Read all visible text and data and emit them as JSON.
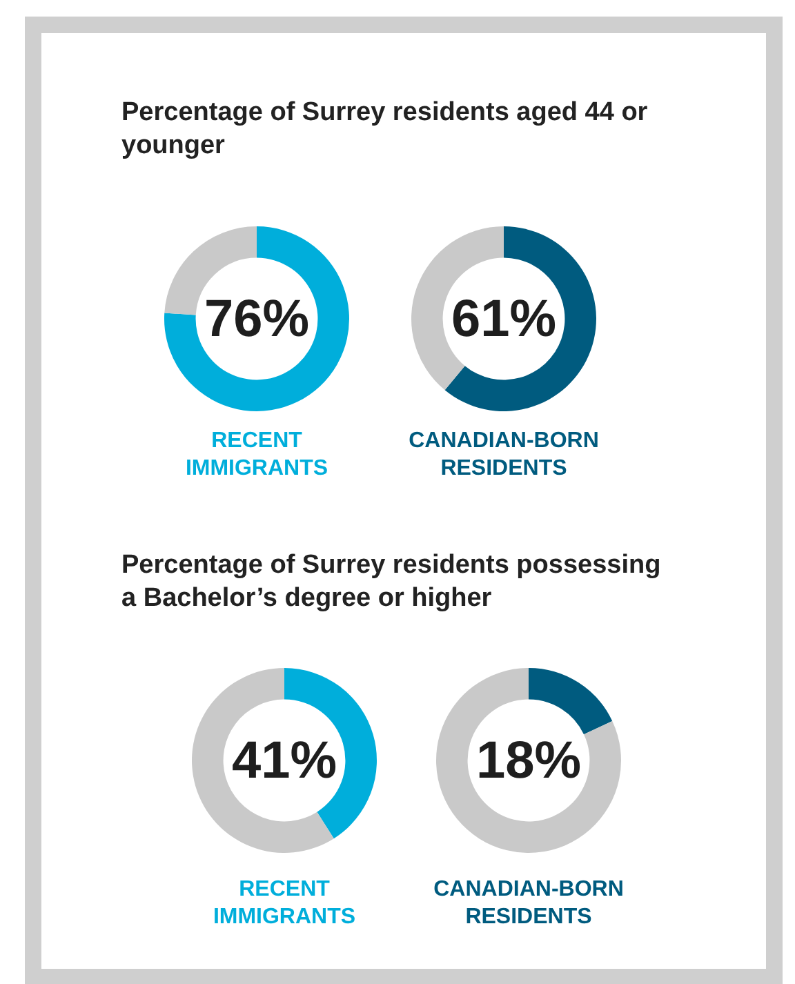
{
  "chart_data": [
    {
      "type": "donut",
      "title": "Percentage of Surrey residents aged 44 or younger",
      "xlabel": "RECENT IMMIGRANTS",
      "categories": [
        null,
        null
      ],
      "values": [
        76,
        24
      ],
      "colors": [
        "#00aedb",
        "#c9c9c9"
      ],
      "annotations": [
        "76%"
      ],
      "legend": false
    },
    {
      "type": "donut",
      "xlabel": "CANADIAN-BORN RESIDENTS",
      "categories": [
        null,
        null
      ],
      "values": [
        61,
        39
      ],
      "colors": [
        "#005b7f",
        "#c9c9c9"
      ],
      "annotations": [
        "61%"
      ],
      "legend": false
    },
    {
      "type": "donut",
      "title": "Percentage of Surrey residents possessing a Bachelor’s degree or higher",
      "xlabel": "RECENT IMMIGRANTS",
      "categories": [
        null,
        null
      ],
      "values": [
        41,
        59
      ],
      "colors": [
        "#00aedb",
        "#c9c9c9"
      ],
      "annotations": [
        "41%"
      ],
      "legend": false
    },
    {
      "type": "donut",
      "xlabel": "CANADIAN-BORN RESIDENTS",
      "categories": [
        null,
        null
      ],
      "values": [
        18,
        82
      ],
      "colors": [
        "#005b7f",
        "#c9c9c9"
      ],
      "annotations": [
        "18%"
      ],
      "legend": false
    }
  ]
}
